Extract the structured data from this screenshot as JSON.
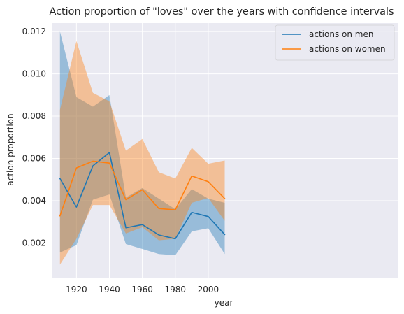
{
  "chart_data": {
    "type": "line",
    "title": "Action proportion of \"loves\" over the years with confidence intervals",
    "xlabel": "year",
    "ylabel": "action proportion",
    "xlim": [
      1905,
      2115
    ],
    "ylim": [
      0.00033,
      0.0124
    ],
    "x_ticks": [
      1920,
      1940,
      1960,
      1980,
      2000
    ],
    "x_tick_labels": [
      "1920",
      "1940",
      "1960",
      "1980",
      "2000"
    ],
    "y_ticks": [
      0.002,
      0.004,
      0.006,
      0.008,
      0.01,
      0.012
    ],
    "y_tick_labels": [
      "0.002",
      "0.004",
      "0.006",
      "0.008",
      "0.010",
      "0.012"
    ],
    "grid": true,
    "legend_position": "top-right",
    "x": [
      1910,
      1920,
      1930,
      1940,
      1950,
      1960,
      1970,
      1980,
      1990,
      2000,
      2010
    ],
    "series": [
      {
        "name": "actions on men",
        "color": "#1f77b4",
        "values": [
          0.00505,
          0.0037,
          0.00565,
          0.00628,
          0.00272,
          0.00287,
          0.00238,
          0.0022,
          0.00345,
          0.00325,
          0.0024
        ],
        "ci_upper": [
          0.012,
          0.0089,
          0.00845,
          0.009,
          0.00415,
          0.0046,
          0.0041,
          0.0036,
          0.00455,
          0.0041,
          0.0039
        ],
        "ci_lower": [
          0.00155,
          0.0019,
          0.00405,
          0.0043,
          0.00195,
          0.00172,
          0.00148,
          0.00142,
          0.00255,
          0.0027,
          0.00148
        ]
      },
      {
        "name": "actions on women",
        "color": "#ff7f0e",
        "values": [
          0.00328,
          0.00555,
          0.00587,
          0.00578,
          0.00405,
          0.00452,
          0.00363,
          0.00357,
          0.00517,
          0.0049,
          0.0041
        ],
        "ci_upper": [
          0.0083,
          0.01155,
          0.0091,
          0.0087,
          0.00637,
          0.00692,
          0.00535,
          0.00505,
          0.0065,
          0.00575,
          0.0059
        ],
        "ci_lower": [
          0.00098,
          0.0022,
          0.0038,
          0.0038,
          0.00245,
          0.00275,
          0.00213,
          0.0022,
          0.0039,
          0.00413,
          0.00305
        ]
      }
    ]
  }
}
